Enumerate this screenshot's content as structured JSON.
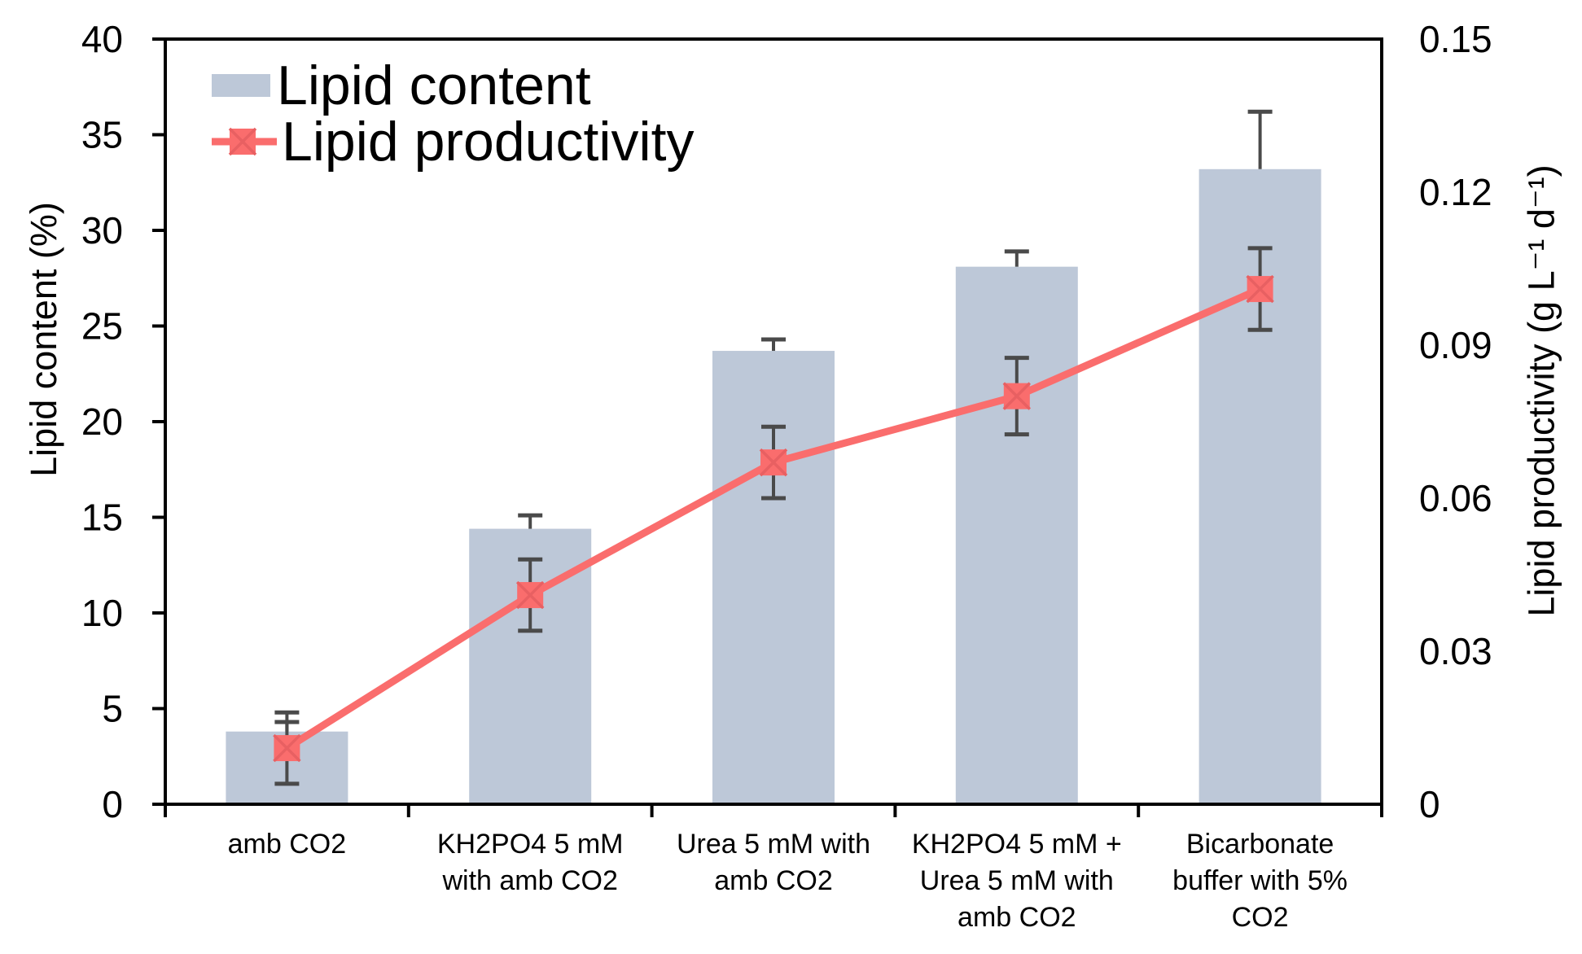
{
  "legend": {
    "items": [
      {
        "label": "Lipid content",
        "swatch": "bar"
      },
      {
        "label": "Lipid productivity",
        "swatch": "line-marker"
      }
    ]
  },
  "chart_data": {
    "type": "bar+line",
    "categories": [
      "amb CO2",
      "KH2PO4 5 mM with amb CO2",
      "Urea 5 mM with amb CO2",
      "KH2PO4 5 mM + Urea 5 mM with amb CO2",
      "Bicarbonate buffer with 5% CO2"
    ],
    "category_label_lines": [
      [
        "amb CO2"
      ],
      [
        "KH2PO4 5 mM",
        "with amb CO2"
      ],
      [
        "Urea 5 mM with",
        "amb CO2"
      ],
      [
        "KH2PO4 5 mM +",
        "Urea 5 mM with",
        "amb CO2"
      ],
      [
        "Bicarbonate",
        "buffer with 5%",
        "CO2"
      ]
    ],
    "series": [
      {
        "name": "Lipid content",
        "type": "bar",
        "axis": "left",
        "values": [
          3.8,
          14.4,
          23.7,
          28.1,
          33.2
        ],
        "errors": [
          0.5,
          0.7,
          0.6,
          0.8,
          3.0
        ],
        "color": "#bdc8d8"
      },
      {
        "name": "Lipid productivity",
        "type": "line",
        "axis": "right",
        "values": [
          0.011,
          0.041,
          0.067,
          0.08,
          0.101
        ],
        "errors": [
          0.007,
          0.007,
          0.007,
          0.0075,
          0.008
        ],
        "color": "#fa6d6d",
        "marker": "square-x",
        "marker_x_color": "#e86062"
      }
    ],
    "left_axis": {
      "title": "Lipid content (%)",
      "min": 0,
      "max": 40,
      "step": 5,
      "tick_labels": [
        "0",
        "5",
        "10",
        "15",
        "20",
        "25",
        "30",
        "35",
        "40"
      ]
    },
    "right_axis": {
      "title": "Lipid productivity (g L⁻¹ d⁻¹)",
      "min": 0,
      "max": 0.15,
      "step": 0.03,
      "tick_labels": [
        "0",
        "0.03",
        "0.06",
        "0.09",
        "0.12",
        "0.15"
      ]
    },
    "grid": "off",
    "legend_position": "top-left-inside",
    "error_bar_color": "#4a4a4a",
    "frame_color": "#000000",
    "text_color": "#000000"
  }
}
